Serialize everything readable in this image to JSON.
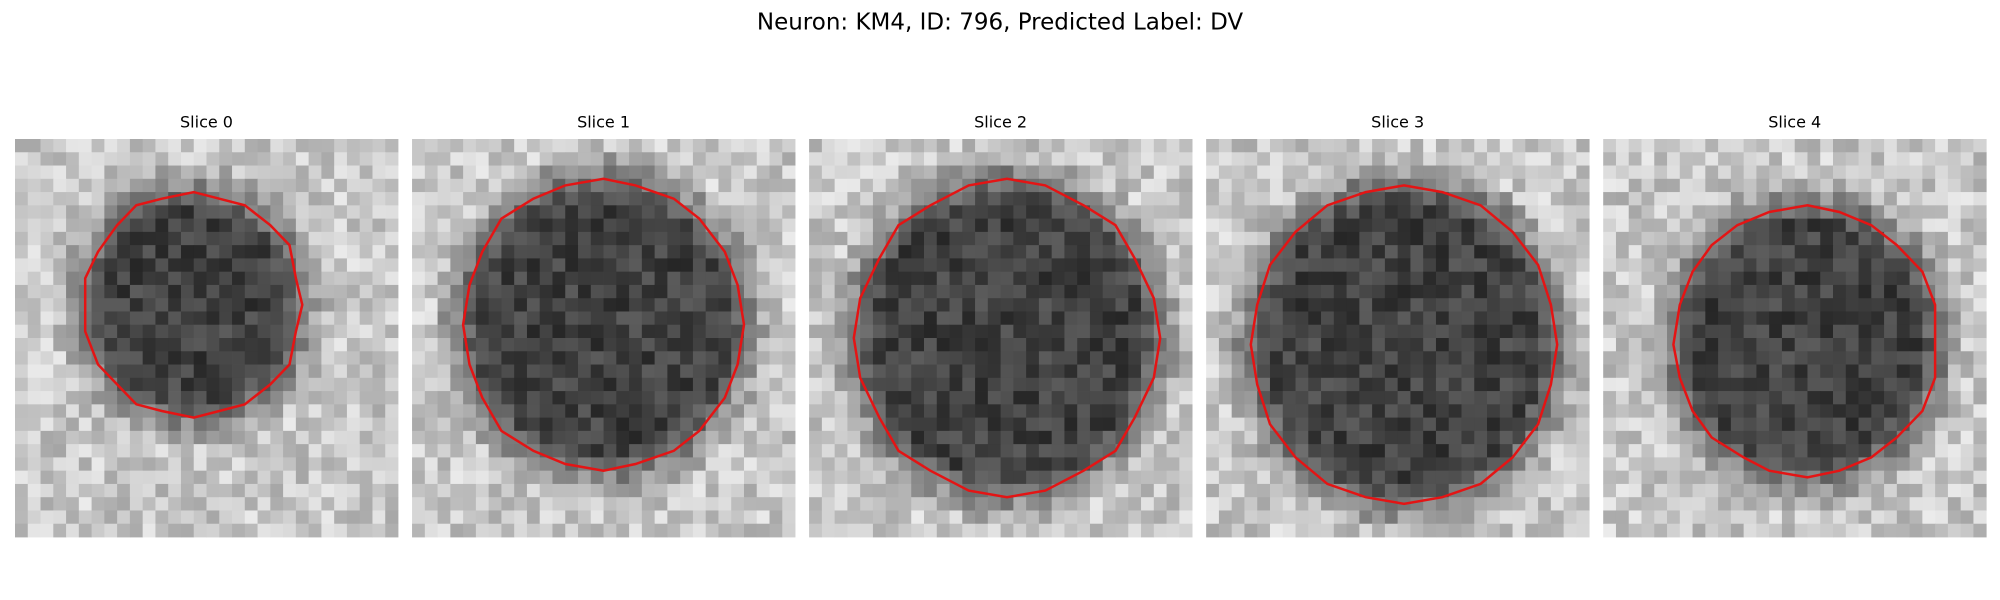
{
  "title": "Neuron: KM4, ID: 796, Predicted Label: DV",
  "panels": [
    {
      "title": "Slice 0"
    },
    {
      "title": "Slice 1"
    },
    {
      "title": "Slice 2"
    },
    {
      "title": "Slice 3"
    },
    {
      "title": "Slice 4"
    }
  ]
}
